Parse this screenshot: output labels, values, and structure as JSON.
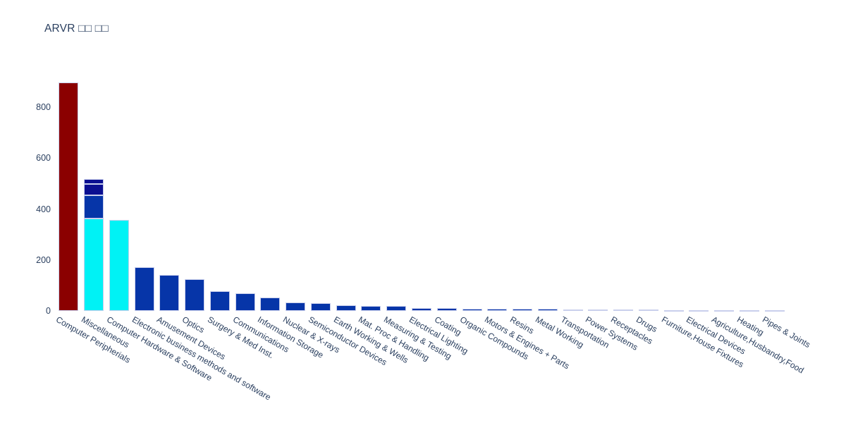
{
  "title": "ARVR □□ □□",
  "colors": {
    "red": "#8B0000",
    "cyan": "#00F2F5",
    "blue": "#0635A8",
    "navy": "#0B0F91",
    "bar_border": "#C9CFEC",
    "text": "#2a3f5f",
    "background": "#ffffff"
  },
  "chart_data": {
    "type": "bar",
    "title": "ARVR □□ □□",
    "xlabel": "",
    "ylabel": "",
    "ylim": [
      0,
      944
    ],
    "yticks": [
      0,
      200,
      400,
      600,
      800
    ],
    "grid": false,
    "legend": false,
    "tick_angle": 30,
    "categories": [
      "Computer Peripherials",
      "Miscellaneous",
      "Computer Hardware & Software",
      "Electronic business methods and software",
      "Amusement Devices",
      "Optics",
      "Surgery & Med Inst.",
      "Communications",
      "Information Storage",
      "Nuclear & X-rays",
      "Semiconductor Devices",
      "Earth Working & Wells",
      "Mat. Proc & Handling",
      "Measuring & Testing",
      "Electrical Lighting",
      "Coating",
      "Organic Compounds",
      "Motors & Engines + Parts",
      "Resins",
      "Metal Working",
      "Transportation",
      "Power Systems",
      "Receptacles",
      "Drugs",
      "Furniture,House Fixtures",
      "Electrical Devices",
      "Agriculture,Husbandry,Food",
      "Heating",
      "Pipes & Joints"
    ],
    "bars": [
      {
        "category": "Computer Peripherials",
        "value": 897,
        "color": "red"
      },
      {
        "category": "Miscellaneous",
        "value": 518,
        "color": "stacked",
        "segments": [
          {
            "value": 363,
            "color": "cyan"
          },
          {
            "value": 90,
            "color": "blue"
          },
          {
            "value": 45,
            "color": "navy"
          },
          {
            "value": 20,
            "color": "navy"
          }
        ]
      },
      {
        "category": "Computer Hardware & Software",
        "value": 356,
        "color": "cyan"
      },
      {
        "category": "Electronic business methods and software",
        "value": 172,
        "color": "blue"
      },
      {
        "category": "Amusement Devices",
        "value": 140,
        "color": "blue"
      },
      {
        "category": "Optics",
        "value": 125,
        "color": "blue"
      },
      {
        "category": "Surgery & Med Inst.",
        "value": 77,
        "color": "blue"
      },
      {
        "category": "Communications",
        "value": 70,
        "color": "blue"
      },
      {
        "category": "Information Storage",
        "value": 53,
        "color": "blue"
      },
      {
        "category": "Nuclear & X-rays",
        "value": 32,
        "color": "blue"
      },
      {
        "category": "Semiconductor Devices",
        "value": 30,
        "color": "blue"
      },
      {
        "category": "Earth Working & Wells",
        "value": 22,
        "color": "blue"
      },
      {
        "category": "Mat. Proc & Handling",
        "value": 20,
        "color": "blue"
      },
      {
        "category": "Measuring & Testing",
        "value": 18,
        "color": "blue"
      },
      {
        "category": "Electrical Lighting",
        "value": 12,
        "color": "blue"
      },
      {
        "category": "Coating",
        "value": 10,
        "color": "blue"
      },
      {
        "category": "Organic Compounds",
        "value": 9,
        "color": "blue"
      },
      {
        "category": "Motors & Engines + Parts",
        "value": 8,
        "color": "blue"
      },
      {
        "category": "Resins",
        "value": 7,
        "color": "blue"
      },
      {
        "category": "Metal Working",
        "value": 7,
        "color": "blue"
      },
      {
        "category": "Transportation",
        "value": 6,
        "color": "blue"
      },
      {
        "category": "Power Systems",
        "value": 6,
        "color": "blue"
      },
      {
        "category": "Receptacles",
        "value": 6,
        "color": "blue"
      },
      {
        "category": "Drugs",
        "value": 5,
        "color": "blue"
      },
      {
        "category": "Furniture,House Fixtures",
        "value": 4,
        "color": "blue"
      },
      {
        "category": "Electrical Devices",
        "value": 4,
        "color": "blue"
      },
      {
        "category": "Agriculture,Husbandry,Food",
        "value": 4,
        "color": "blue"
      },
      {
        "category": "Heating",
        "value": 3,
        "color": "blue"
      },
      {
        "category": "Pipes & Joints",
        "value": 3,
        "color": "blue"
      }
    ]
  }
}
